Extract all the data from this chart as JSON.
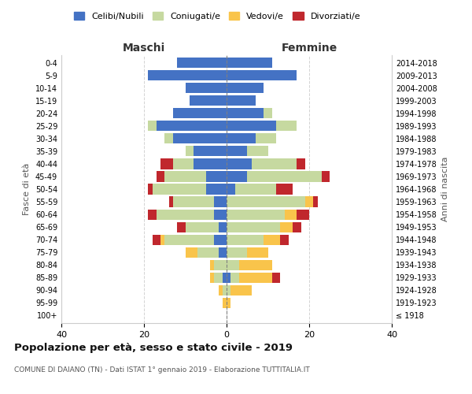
{
  "age_groups": [
    "100+",
    "95-99",
    "90-94",
    "85-89",
    "80-84",
    "75-79",
    "70-74",
    "65-69",
    "60-64",
    "55-59",
    "50-54",
    "45-49",
    "40-44",
    "35-39",
    "30-34",
    "25-29",
    "20-24",
    "15-19",
    "10-14",
    "5-9",
    "0-4"
  ],
  "birth_years": [
    "≤ 1918",
    "1919-1923",
    "1924-1928",
    "1929-1933",
    "1934-1938",
    "1939-1943",
    "1944-1948",
    "1949-1953",
    "1954-1958",
    "1959-1963",
    "1964-1968",
    "1969-1973",
    "1974-1978",
    "1979-1983",
    "1984-1988",
    "1989-1993",
    "1994-1998",
    "1999-2003",
    "2004-2008",
    "2009-2013",
    "2014-2018"
  ],
  "colors": {
    "celibi": "#4472C4",
    "coniugati": "#C6D9A0",
    "vedovi": "#F9C44B",
    "divorziati": "#C0272D"
  },
  "maschi": {
    "celibi": [
      0,
      0,
      0,
      1,
      0,
      2,
      3,
      2,
      3,
      3,
      5,
      5,
      8,
      8,
      13,
      17,
      13,
      9,
      10,
      19,
      12
    ],
    "coniugati": [
      0,
      0,
      1,
      2,
      3,
      5,
      12,
      8,
      14,
      10,
      13,
      10,
      5,
      2,
      2,
      2,
      0,
      0,
      0,
      0,
      0
    ],
    "vedovi": [
      0,
      1,
      1,
      1,
      1,
      3,
      1,
      0,
      0,
      0,
      0,
      0,
      0,
      0,
      0,
      0,
      0,
      0,
      0,
      0,
      0
    ],
    "divorziati": [
      0,
      0,
      0,
      0,
      0,
      0,
      2,
      2,
      2,
      1,
      1,
      2,
      3,
      0,
      0,
      0,
      0,
      0,
      0,
      0,
      0
    ]
  },
  "femmine": {
    "celibi": [
      0,
      0,
      0,
      1,
      0,
      0,
      0,
      0,
      0,
      0,
      2,
      5,
      6,
      5,
      7,
      12,
      9,
      7,
      9,
      17,
      11
    ],
    "coniugati": [
      0,
      0,
      1,
      2,
      3,
      5,
      9,
      13,
      14,
      19,
      10,
      18,
      11,
      5,
      5,
      5,
      2,
      0,
      0,
      0,
      0
    ],
    "vedovi": [
      0,
      1,
      5,
      8,
      8,
      5,
      4,
      3,
      3,
      2,
      0,
      0,
      0,
      0,
      0,
      0,
      0,
      0,
      0,
      0,
      0
    ],
    "divorziati": [
      0,
      0,
      0,
      2,
      0,
      0,
      2,
      2,
      3,
      1,
      4,
      2,
      2,
      0,
      0,
      0,
      0,
      0,
      0,
      0,
      0
    ]
  },
  "xlim": 40,
  "title": "Popolazione per età, sesso e stato civile - 2019",
  "subtitle": "COMUNE DI DAIANO (TN) - Dati ISTAT 1° gennaio 2019 - Elaborazione TUTTITALIA.IT",
  "ylabel_left": "Fasce di età",
  "ylabel_right": "Anni di nascita",
  "xlabel_left": "Maschi",
  "xlabel_right": "Femmine"
}
